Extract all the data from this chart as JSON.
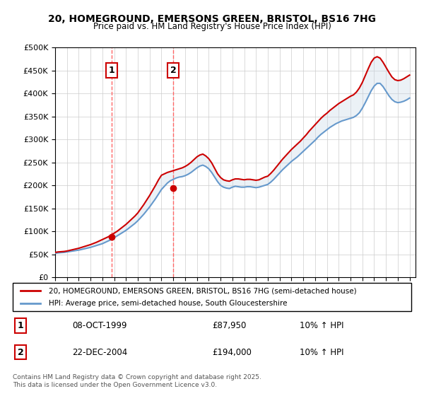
{
  "title": "20, HOMEGROUND, EMERSONS GREEN, BRISTOL, BS16 7HG",
  "subtitle": "Price paid vs. HM Land Registry's House Price Index (HPI)",
  "legend_line1": "20, HOMEGROUND, EMERSONS GREEN, BRISTOL, BS16 7HG (semi-detached house)",
  "legend_line2": "HPI: Average price, semi-detached house, South Gloucestershire",
  "transaction1_label": "1",
  "transaction1_date": "08-OCT-1999",
  "transaction1_price": "£87,950",
  "transaction1_hpi": "10% ↑ HPI",
  "transaction1_year": 1999.77,
  "transaction1_value": 87950,
  "transaction2_label": "2",
  "transaction2_date": "22-DEC-2004",
  "transaction2_price": "£194,000",
  "transaction2_hpi": "10% ↑ HPI",
  "transaction2_year": 2004.98,
  "transaction2_value": 194000,
  "footer": "Contains HM Land Registry data © Crown copyright and database right 2025.\nThis data is licensed under the Open Government Licence v3.0.",
  "line_color_red": "#cc0000",
  "line_color_blue": "#6699cc",
  "fill_color": "#c8d8e8",
  "vline_color": "#ff6666",
  "ylim": [
    0,
    500000
  ],
  "xlim_start": 1995.0,
  "xlim_end": 2025.5,
  "xticks": [
    1995,
    1996,
    1997,
    1998,
    1999,
    2000,
    2001,
    2002,
    2003,
    2004,
    2005,
    2006,
    2007,
    2008,
    2009,
    2010,
    2011,
    2012,
    2013,
    2014,
    2015,
    2016,
    2017,
    2018,
    2019,
    2020,
    2021,
    2022,
    2023,
    2024,
    2025
  ],
  "yticks": [
    0,
    50000,
    100000,
    150000,
    200000,
    250000,
    300000,
    350000,
    400000,
    450000,
    500000
  ],
  "hpi_years": [
    1995.0,
    1995.25,
    1995.5,
    1995.75,
    1996.0,
    1996.25,
    1996.5,
    1996.75,
    1997.0,
    1997.25,
    1997.5,
    1997.75,
    1998.0,
    1998.25,
    1998.5,
    1998.75,
    1999.0,
    1999.25,
    1999.5,
    1999.75,
    2000.0,
    2000.25,
    2000.5,
    2000.75,
    2001.0,
    2001.25,
    2001.5,
    2001.75,
    2002.0,
    2002.25,
    2002.5,
    2002.75,
    2003.0,
    2003.25,
    2003.5,
    2003.75,
    2004.0,
    2004.25,
    2004.5,
    2004.75,
    2005.0,
    2005.25,
    2005.5,
    2005.75,
    2006.0,
    2006.25,
    2006.5,
    2006.75,
    2007.0,
    2007.25,
    2007.5,
    2007.75,
    2008.0,
    2008.25,
    2008.5,
    2008.75,
    2009.0,
    2009.25,
    2009.5,
    2009.75,
    2010.0,
    2010.25,
    2010.5,
    2010.75,
    2011.0,
    2011.25,
    2011.5,
    2011.75,
    2012.0,
    2012.25,
    2012.5,
    2012.75,
    2013.0,
    2013.25,
    2013.5,
    2013.75,
    2014.0,
    2014.25,
    2014.5,
    2014.75,
    2015.0,
    2015.25,
    2015.5,
    2015.75,
    2016.0,
    2016.25,
    2016.5,
    2016.75,
    2017.0,
    2017.25,
    2017.5,
    2017.75,
    2018.0,
    2018.25,
    2018.5,
    2018.75,
    2019.0,
    2019.25,
    2019.5,
    2019.75,
    2020.0,
    2020.25,
    2020.5,
    2020.75,
    2021.0,
    2021.25,
    2021.5,
    2021.75,
    2022.0,
    2022.25,
    2022.5,
    2022.75,
    2023.0,
    2023.25,
    2023.5,
    2023.75,
    2024.0,
    2024.25,
    2024.5,
    2024.75,
    2025.0
  ],
  "hpi_values": [
    52000,
    53000,
    53500,
    54000,
    55000,
    56000,
    57000,
    58000,
    59000,
    60500,
    62000,
    63500,
    65000,
    67000,
    69000,
    71000,
    73000,
    76000,
    79000,
    82000,
    86000,
    90000,
    94000,
    98000,
    102000,
    107000,
    112000,
    117000,
    123000,
    130000,
    137000,
    145000,
    153000,
    162000,
    171000,
    181000,
    191000,
    198000,
    205000,
    210000,
    213000,
    216000,
    218000,
    219000,
    221000,
    224000,
    228000,
    233000,
    238000,
    242000,
    244000,
    241000,
    236000,
    228000,
    218000,
    208000,
    200000,
    196000,
    194000,
    193000,
    196000,
    198000,
    197000,
    196000,
    196000,
    197000,
    197000,
    196000,
    195000,
    196000,
    198000,
    200000,
    202000,
    207000,
    213000,
    220000,
    227000,
    234000,
    240000,
    246000,
    252000,
    257000,
    262000,
    268000,
    274000,
    280000,
    286000,
    292000,
    298000,
    305000,
    311000,
    316000,
    321000,
    326000,
    330000,
    334000,
    337000,
    340000,
    342000,
    344000,
    346000,
    348000,
    352000,
    358000,
    368000,
    380000,
    393000,
    406000,
    416000,
    422000,
    422000,
    415000,
    405000,
    395000,
    387000,
    382000,
    380000,
    381000,
    383000,
    386000,
    390000
  ],
  "price_years": [
    1995.0,
    1995.25,
    1995.5,
    1995.75,
    1996.0,
    1996.25,
    1996.5,
    1996.75,
    1997.0,
    1997.25,
    1997.5,
    1997.75,
    1998.0,
    1998.25,
    1998.5,
    1998.75,
    1999.0,
    1999.25,
    1999.5,
    1999.75,
    2000.0,
    2000.25,
    2000.5,
    2000.75,
    2001.0,
    2001.25,
    2001.5,
    2001.75,
    2002.0,
    2002.25,
    2002.5,
    2002.75,
    2003.0,
    2003.25,
    2003.5,
    2003.75,
    2004.0,
    2004.25,
    2004.5,
    2004.75,
    2005.0,
    2005.25,
    2005.5,
    2005.75,
    2006.0,
    2006.25,
    2006.5,
    2006.75,
    2007.0,
    2007.25,
    2007.5,
    2007.75,
    2008.0,
    2008.25,
    2008.5,
    2008.75,
    2009.0,
    2009.25,
    2009.5,
    2009.75,
    2010.0,
    2010.25,
    2010.5,
    2010.75,
    2011.0,
    2011.25,
    2011.5,
    2011.75,
    2012.0,
    2012.25,
    2012.5,
    2012.75,
    2013.0,
    2013.25,
    2013.5,
    2013.75,
    2014.0,
    2014.25,
    2014.5,
    2014.75,
    2015.0,
    2015.25,
    2015.5,
    2015.75,
    2016.0,
    2016.25,
    2016.5,
    2016.75,
    2017.0,
    2017.25,
    2017.5,
    2017.75,
    2018.0,
    2018.25,
    2018.5,
    2018.75,
    2019.0,
    2019.25,
    2019.5,
    2019.75,
    2020.0,
    2020.25,
    2020.5,
    2020.75,
    2021.0,
    2021.25,
    2021.5,
    2021.75,
    2022.0,
    2022.25,
    2022.5,
    2022.75,
    2023.0,
    2023.25,
    2023.5,
    2023.75,
    2024.0,
    2024.25,
    2024.5,
    2024.75,
    2025.0
  ],
  "price_values": [
    54000,
    55000,
    55500,
    56000,
    57000,
    58500,
    60000,
    61500,
    63000,
    65000,
    67000,
    69000,
    71000,
    73500,
    76000,
    79000,
    82000,
    85000,
    88000,
    92000,
    96000,
    100000,
    105000,
    110000,
    115000,
    121000,
    127000,
    133000,
    140000,
    149000,
    158000,
    168000,
    178000,
    189000,
    200000,
    212000,
    222000,
    225000,
    228000,
    230000,
    232000,
    234000,
    236000,
    238000,
    241000,
    245000,
    250000,
    256000,
    262000,
    266000,
    268000,
    264000,
    258000,
    249000,
    237000,
    225000,
    217000,
    212000,
    210000,
    209000,
    212000,
    214000,
    214000,
    213000,
    212000,
    213000,
    213000,
    212000,
    211000,
    212000,
    215000,
    218000,
    220000,
    226000,
    233000,
    241000,
    249000,
    257000,
    264000,
    271000,
    278000,
    284000,
    290000,
    296000,
    303000,
    310000,
    318000,
    325000,
    332000,
    339000,
    346000,
    352000,
    357000,
    363000,
    368000,
    373000,
    378000,
    382000,
    386000,
    390000,
    394000,
    397000,
    403000,
    412000,
    424000,
    439000,
    454000,
    468000,
    477000,
    480000,
    477000,
    468000,
    457000,
    446000,
    436000,
    430000,
    428000,
    429000,
    432000,
    436000,
    440000
  ]
}
